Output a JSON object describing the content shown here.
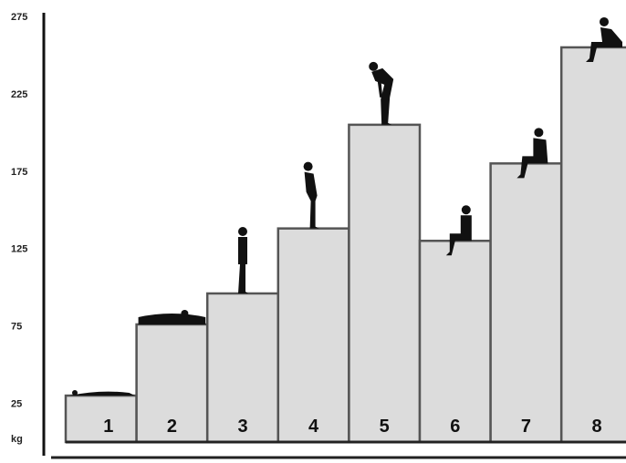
{
  "chart_data": {
    "type": "bar",
    "categories": [
      "1",
      "2",
      "3",
      "4",
      "5",
      "6",
      "7",
      "8"
    ],
    "values": [
      30,
      76,
      96,
      138,
      205,
      130,
      180,
      255
    ],
    "ylim": [
      0,
      275
    ],
    "yticks": [
      "275",
      "225",
      "175",
      "125",
      "75",
      "25"
    ],
    "ytick_values": [
      275,
      225,
      175,
      125,
      75,
      25
    ],
    "unit_label": "kg",
    "grid": false,
    "bar_color": "#dcdcdc",
    "edge_color": "#555555",
    "figure_icons": [
      "lying-figure-icon",
      "lying-figure-icon",
      "standing-figure-icon",
      "standing-bent-figure-icon",
      "bending-forward-figure-icon",
      "sitting-upright-figure-icon",
      "sitting-leaning-figure-icon",
      "sitting-forward-figure-icon"
    ]
  }
}
